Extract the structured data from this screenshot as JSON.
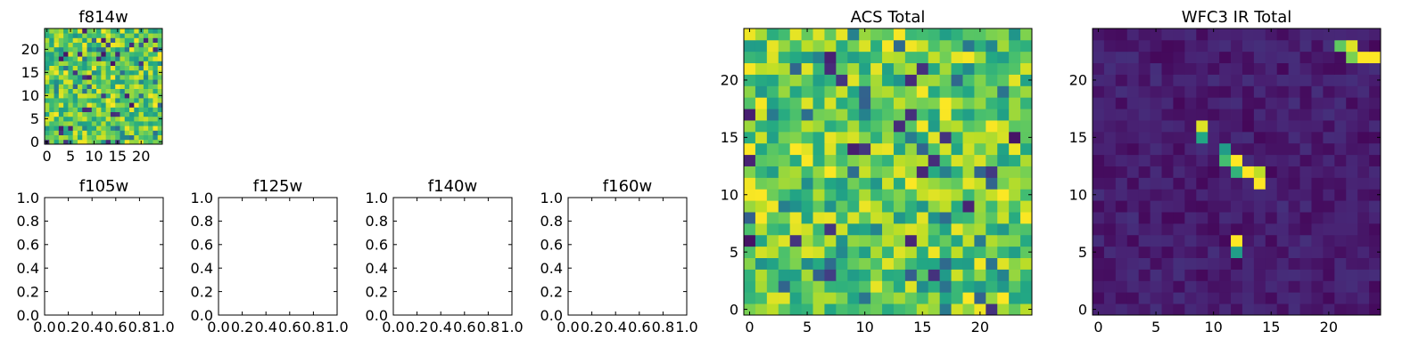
{
  "chart_data": [
    {
      "type": "heatmap",
      "id": "f814w",
      "title": "f814w",
      "grid_size": 25,
      "colormap": "viridis",
      "ylim": [
        -0.5,
        24.5
      ],
      "xlim": [
        -0.5,
        24.5
      ],
      "xticks": [
        0,
        5,
        10,
        15,
        20
      ],
      "yticks": [
        0,
        5,
        10,
        15,
        20
      ],
      "xticklabels": [
        "0",
        "5",
        "10",
        "15",
        "20"
      ],
      "yticklabels": [
        "0",
        "5",
        "10",
        "15",
        "20"
      ],
      "values": "25x25 noise field, values mostly 0.6-1.0 (green-yellow) with scattered low pixels"
    },
    {
      "type": "empty",
      "id": "f105w",
      "title": "f105w",
      "xlim": [
        0,
        1
      ],
      "ylim": [
        0,
        1
      ],
      "xticklabels": [
        "0.0",
        "0.2",
        "0.4",
        "0.6",
        "0.8",
        "1.0"
      ],
      "yticklabels": [
        "0.0",
        "0.2",
        "0.4",
        "0.6",
        "0.8",
        "1.0"
      ]
    },
    {
      "type": "empty",
      "id": "f125w",
      "title": "f125w",
      "xlim": [
        0,
        1
      ],
      "ylim": [
        0,
        1
      ],
      "xticklabels": [
        "0.0",
        "0.2",
        "0.4",
        "0.6",
        "0.8",
        "1.0"
      ],
      "yticklabels": [
        "0.0",
        "0.2",
        "0.4",
        "0.6",
        "0.8",
        "1.0"
      ]
    },
    {
      "type": "empty",
      "id": "f140w",
      "title": "f140w",
      "xlim": [
        0,
        1
      ],
      "ylim": [
        0,
        1
      ],
      "xticklabels": [
        "0.0",
        "0.2",
        "0.4",
        "0.6",
        "0.8",
        "1.0"
      ],
      "yticklabels": [
        "0.0",
        "0.2",
        "0.4",
        "0.6",
        "0.8",
        "1.0"
      ]
    },
    {
      "type": "empty",
      "id": "f160w",
      "title": "f160w",
      "xlim": [
        0,
        1
      ],
      "ylim": [
        0,
        1
      ],
      "xticklabels": [
        "0.0",
        "0.2",
        "0.4",
        "0.6",
        "0.8",
        "1.0"
      ],
      "yticklabels": [
        "0.0",
        "0.2",
        "0.4",
        "0.6",
        "0.8",
        "1.0"
      ]
    },
    {
      "type": "heatmap",
      "id": "acs-total",
      "title": "ACS Total",
      "grid_size": 25,
      "colormap": "viridis",
      "xlim": [
        -0.5,
        24.5
      ],
      "ylim": [
        -0.5,
        24.5
      ],
      "xticklabels": [
        "0",
        "5",
        "10",
        "15",
        "20"
      ],
      "yticklabels": [
        "0",
        "5",
        "10",
        "15",
        "20"
      ],
      "values": "25x25 noise field, values mostly 0.6-1.0 with a few dark pixels"
    },
    {
      "type": "heatmap",
      "id": "wfc3-ir-total",
      "title": "WFC3 IR Total",
      "grid_size": 25,
      "colormap": "viridis",
      "xlim": [
        -0.5,
        24.5
      ],
      "ylim": [
        -0.5,
        24.5
      ],
      "xticklabels": [
        "0",
        "5",
        "10",
        "15",
        "20"
      ],
      "yticklabels": [
        "0",
        "5",
        "10",
        "15",
        "20"
      ],
      "background_level": 0.08,
      "bright_pixels": [
        {
          "x": 21,
          "y": 23,
          "v": 0.75
        },
        {
          "x": 22,
          "y": 23,
          "v": 0.95
        },
        {
          "x": 23,
          "y": 22,
          "v": 1.0
        },
        {
          "x": 24,
          "y": 22,
          "v": 1.0
        },
        {
          "x": 22,
          "y": 22,
          "v": 0.8
        },
        {
          "x": 9,
          "y": 16,
          "v": 0.95
        },
        {
          "x": 9,
          "y": 15,
          "v": 0.6
        },
        {
          "x": 11,
          "y": 14,
          "v": 0.55
        },
        {
          "x": 11,
          "y": 13,
          "v": 0.7
        },
        {
          "x": 12,
          "y": 13,
          "v": 1.0
        },
        {
          "x": 12,
          "y": 12,
          "v": 0.65
        },
        {
          "x": 13,
          "y": 12,
          "v": 1.0
        },
        {
          "x": 14,
          "y": 12,
          "v": 0.9
        },
        {
          "x": 14,
          "y": 11,
          "v": 1.0
        },
        {
          "x": 12,
          "y": 6,
          "v": 1.0
        },
        {
          "x": 12,
          "y": 5,
          "v": 0.55
        }
      ]
    }
  ]
}
